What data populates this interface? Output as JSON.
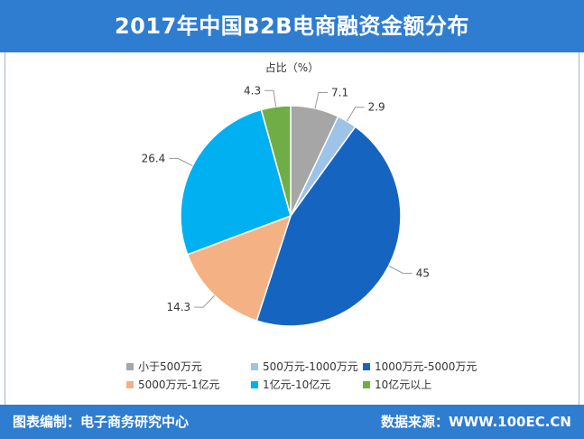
{
  "header": {
    "title": "2017年中国B2B电商融资金额分布"
  },
  "footer": {
    "compiler": "图表编制：电子商务研究中心",
    "source": "数据来源：WWW.100EC.CN"
  },
  "colors": {
    "header_bg": "#2e7dd1",
    "leader_line": "#999999"
  },
  "chart_data": {
    "type": "pie",
    "unit_label": "占比（%）",
    "start_angle_deg": 0,
    "direction": "clockwise",
    "slices": [
      {
        "label": "小于500万元",
        "value": 7.1,
        "value_label": "7.1",
        "color": "#a6a6a6"
      },
      {
        "label": "500万元-1000万元",
        "value": 2.9,
        "value_label": "2.9",
        "color": "#9dc3e6"
      },
      {
        "label": "1000万元-5000万元",
        "value": 45,
        "value_label": "45",
        "color": "#1565c0"
      },
      {
        "label": "5000万元-1亿元",
        "value": 14.3,
        "value_label": "14.3",
        "color": "#f4b183"
      },
      {
        "label": "1亿元-10亿元",
        "value": 26.4,
        "value_label": "26.4",
        "color": "#00b0f0"
      },
      {
        "label": "10亿元以上",
        "value": 4.3,
        "value_label": "4.3",
        "color": "#70ad47"
      }
    ],
    "legend_position": "bottom"
  }
}
